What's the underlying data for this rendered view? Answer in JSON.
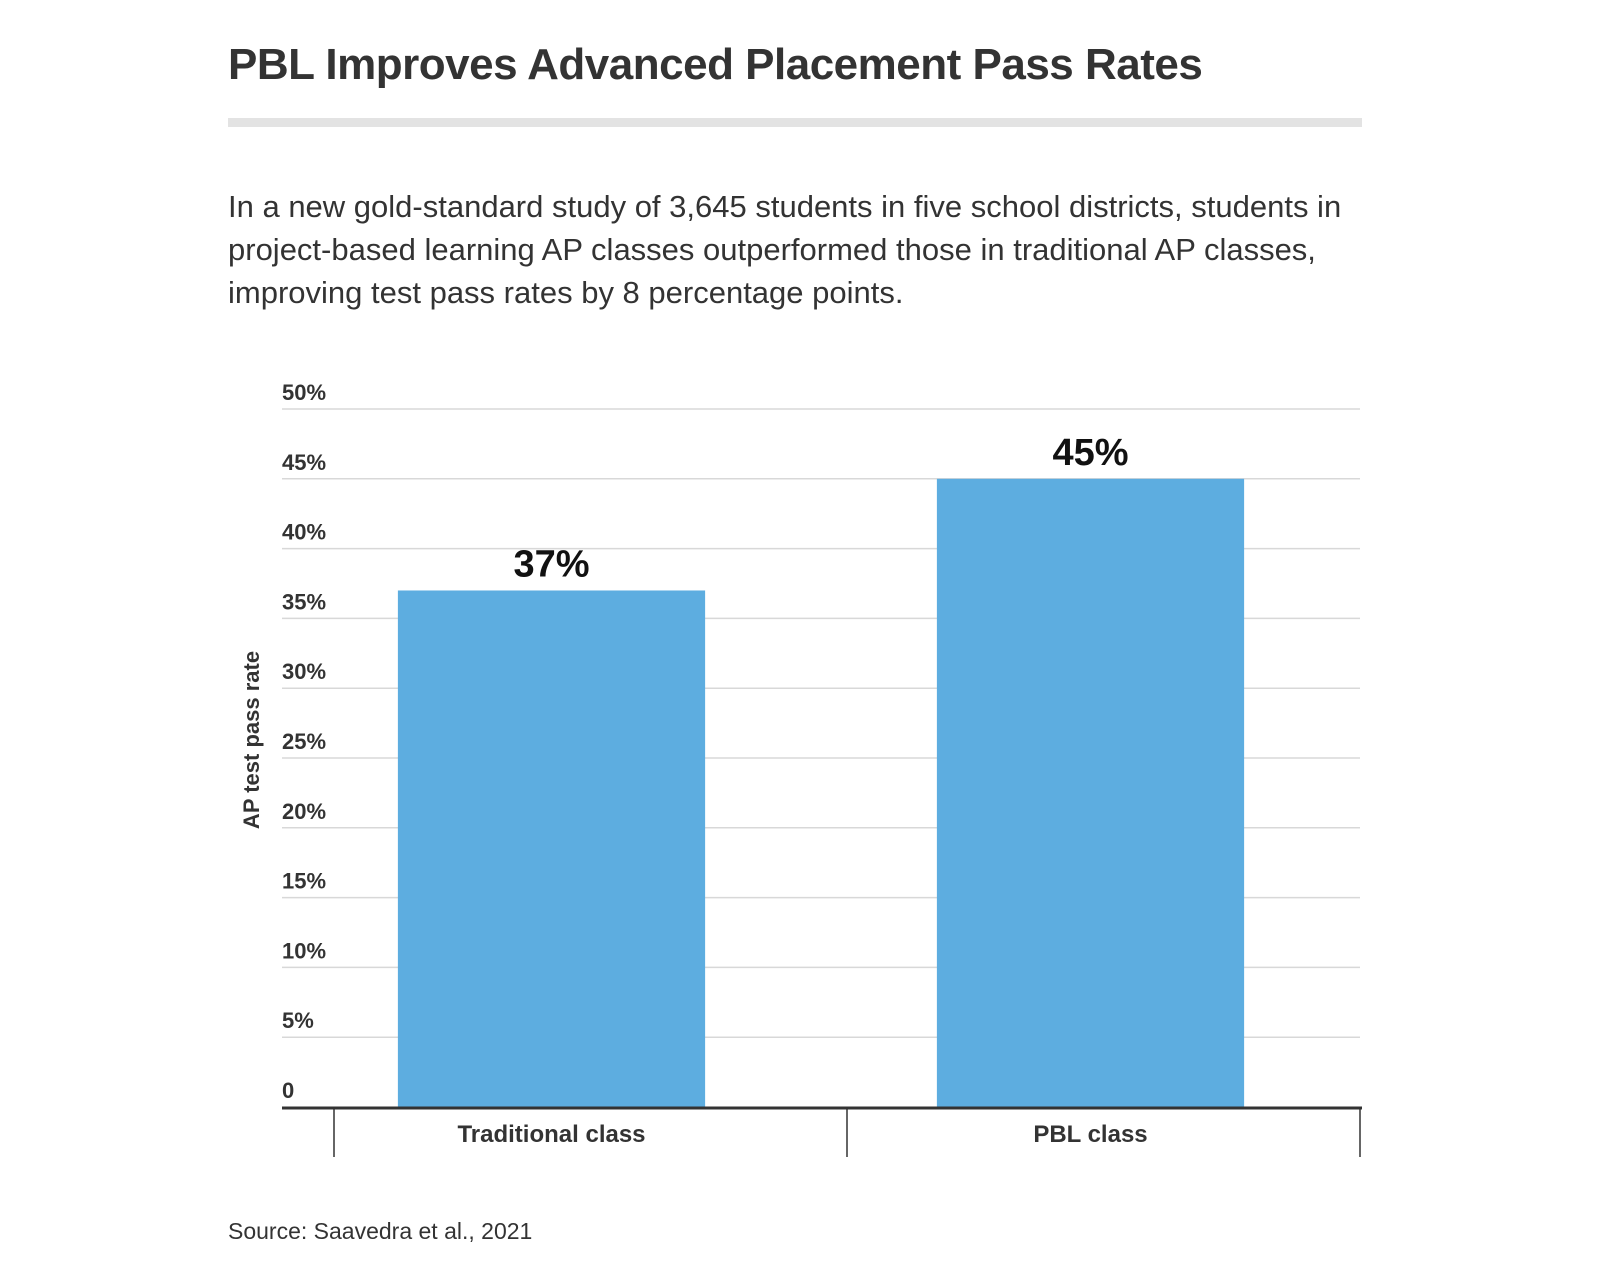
{
  "title": "PBL Improves Advanced Placement Pass Rates",
  "subtitle": "In a new gold-standard study of 3,645 students in five school districts, students in project-based learning AP classes outperformed those in traditional AP classes, improving test pass rates by 8 percentage points.",
  "source": "Source: Saavedra et al., 2021",
  "colors": {
    "bar": "#5dade0",
    "grid": "#d8d8d8",
    "axis": "#333333",
    "text": "#333333"
  },
  "chart_data": {
    "type": "bar",
    "categories": [
      "Traditional class",
      "PBL class"
    ],
    "values": [
      37,
      45
    ],
    "data_labels": [
      "37%",
      "45%"
    ],
    "ylabel": "AP test pass rate",
    "ylim": [
      0,
      50
    ],
    "yticks": [
      0,
      5,
      10,
      15,
      20,
      25,
      30,
      35,
      40,
      45,
      50
    ],
    "ytick_labels": [
      "0",
      "5%",
      "10%",
      "15%",
      "20%",
      "25%",
      "30%",
      "35%",
      "40%",
      "45%",
      "50%"
    ],
    "grid": true,
    "legend": "none"
  }
}
